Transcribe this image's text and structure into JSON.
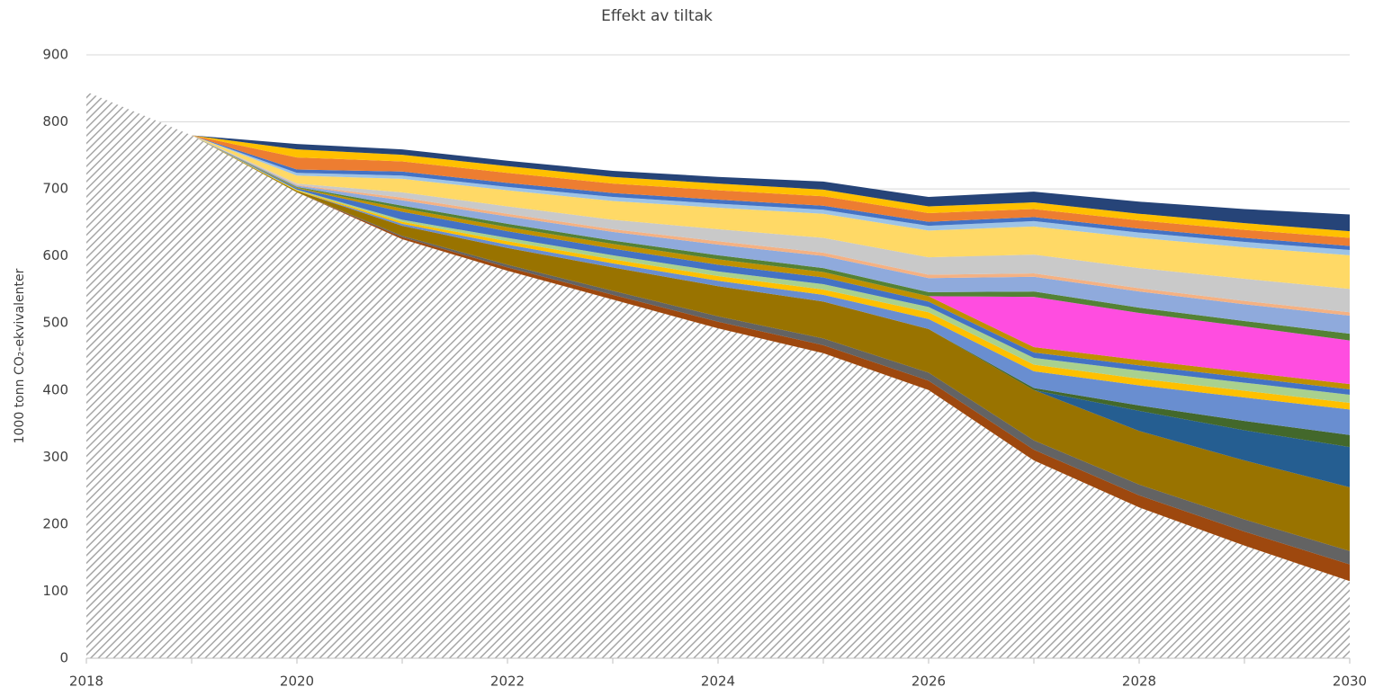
{
  "chart_data": {
    "type": "stacked_area",
    "title": "Effekt av tiltak",
    "y_label": "1000 tonn CO₂-ekvivalenter",
    "x": [
      2018,
      2019,
      2020,
      2021,
      2022,
      2023,
      2024,
      2025,
      2026,
      2027,
      2028,
      2029,
      2030
    ],
    "xlim": [
      2018,
      2030
    ],
    "xticks": [
      2018,
      2020,
      2022,
      2024,
      2026,
      2028,
      2030
    ],
    "ylim": [
      0,
      900
    ],
    "yticks": [
      0,
      100,
      200,
      300,
      400,
      500,
      600,
      700,
      800,
      900
    ],
    "grid": true,
    "series": [
      {
        "color": "#a6a6a6",
        "hatch": true,
        "values": [
          845,
          780,
          695,
          625,
          578,
          535,
          492,
          455,
          400,
          295,
          225,
          168,
          115
        ]
      },
      {
        "color": "#9e480e",
        "values": [
          0,
          0,
          0,
          3,
          5,
          7,
          10,
          12,
          14,
          16,
          18,
          21,
          25
        ]
      },
      {
        "color": "#636363",
        "values": [
          0,
          0,
          0,
          2,
          4,
          6,
          8,
          10,
          12,
          14,
          16,
          18,
          20
        ]
      },
      {
        "color": "#997300",
        "values": [
          0,
          0,
          2,
          15,
          25,
          35,
          45,
          55,
          65,
          75,
          80,
          88,
          95
        ]
      },
      {
        "color": "#255e91",
        "values": [
          0,
          0,
          0,
          0,
          0,
          0,
          0,
          0,
          0,
          0,
          30,
          45,
          60
        ]
      },
      {
        "color": "#43682b",
        "values": [
          0,
          0,
          0,
          0,
          0,
          0,
          0,
          0,
          0,
          3,
          8,
          14,
          18
        ]
      },
      {
        "color": "#698ed0",
        "values": [
          0,
          0,
          0,
          3,
          5,
          6,
          8,
          10,
          15,
          25,
          30,
          35,
          38
        ]
      },
      {
        "color": "#ffc000",
        "values": [
          0,
          0,
          1,
          3,
          5,
          6,
          7,
          8,
          10,
          10,
          10,
          10,
          10
        ]
      },
      {
        "color": "#a9d18e",
        "values": [
          0,
          0,
          1,
          3,
          5,
          6,
          7,
          8,
          8,
          10,
          12,
          12,
          12
        ]
      },
      {
        "color": "#4472c4",
        "values": [
          0,
          0,
          2,
          12,
          10,
          10,
          10,
          10,
          8,
          8,
          8,
          8,
          8
        ]
      },
      {
        "color": "#bf9000",
        "values": [
          0,
          0,
          1,
          5,
          6,
          7,
          8,
          8,
          8,
          8,
          8,
          8,
          8
        ]
      },
      {
        "color": "#ff4de0",
        "values": [
          0,
          0,
          0,
          0,
          0,
          0,
          0,
          0,
          0,
          75,
          70,
          68,
          65
        ]
      },
      {
        "color": "#548235",
        "values": [
          0,
          0,
          1,
          4,
          5,
          5,
          6,
          6,
          6,
          8,
          8,
          8,
          10
        ]
      },
      {
        "color": "#8faadc",
        "values": [
          0,
          0,
          2,
          8,
          11,
          13,
          16,
          18,
          21,
          22,
          24,
          25,
          27
        ]
      },
      {
        "color": "#f4b183",
        "values": [
          0,
          0,
          1,
          4,
          4,
          4,
          5,
          5,
          5,
          5,
          5,
          5,
          5
        ]
      },
      {
        "color": "#c9c9c9",
        "values": [
          0,
          0,
          2,
          8,
          11,
          14,
          18,
          22,
          26,
          28,
          30,
          33,
          35
        ]
      },
      {
        "color": "#ffd966",
        "values": [
          0,
          0,
          12,
          20,
          24,
          28,
          32,
          36,
          40,
          42,
          45,
          47,
          50
        ]
      },
      {
        "color": "#9dc3e6",
        "values": [
          0,
          0,
          4,
          5,
          5,
          6,
          6,
          6,
          7,
          8,
          8,
          8,
          8
        ]
      },
      {
        "color": "#4472c4",
        "values": [
          0,
          0,
          5,
          6,
          6,
          6,
          6,
          6,
          6,
          6,
          6,
          6,
          6
        ]
      },
      {
        "color": "#ed7d31",
        "values": [
          0,
          0,
          18,
          15,
          15,
          14,
          14,
          14,
          13,
          12,
          12,
          12,
          12
        ]
      },
      {
        "color": "#ffc000",
        "values": [
          0,
          0,
          12,
          10,
          10,
          10,
          10,
          10,
          10,
          10,
          10,
          10,
          10
        ]
      },
      {
        "color": "#264478",
        "values": [
          0,
          0,
          8,
          8,
          8,
          9,
          10,
          12,
          14,
          16,
          18,
          21,
          25
        ]
      }
    ]
  }
}
